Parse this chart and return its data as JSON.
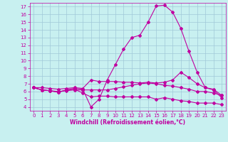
{
  "background_color": "#c8f0f0",
  "grid_color": "#a0c8d8",
  "line_color": "#c000a0",
  "xlabel": "Windchill (Refroidissement éolien,°C)",
  "ylim": [
    3.5,
    17.5
  ],
  "xlim": [
    -0.5,
    23.5
  ],
  "yticks": [
    4,
    5,
    6,
    7,
    8,
    9,
    10,
    11,
    12,
    13,
    14,
    15,
    16,
    17
  ],
  "xticks": [
    0,
    1,
    2,
    3,
    4,
    5,
    6,
    7,
    8,
    9,
    10,
    11,
    12,
    13,
    14,
    15,
    16,
    17,
    18,
    19,
    20,
    21,
    22,
    23
  ],
  "line1_x": [
    0,
    1,
    2,
    3,
    4,
    5,
    6,
    7,
    8,
    9,
    10,
    11,
    12,
    13,
    14,
    15,
    16,
    17,
    18,
    19,
    20,
    21,
    22,
    23
  ],
  "line1_y": [
    6.5,
    6.2,
    6.1,
    5.9,
    6.2,
    6.3,
    5.8,
    5.3,
    5.4,
    5.4,
    5.3,
    5.3,
    5.3,
    5.3,
    5.3,
    5.0,
    5.2,
    5.0,
    4.8,
    4.7,
    4.5,
    4.5,
    4.5,
    4.3
  ],
  "line2_x": [
    0,
    1,
    2,
    3,
    4,
    5,
    6,
    7,
    8,
    9,
    10,
    11,
    12,
    13,
    14,
    15,
    16,
    17,
    18,
    19,
    20,
    21,
    22,
    23
  ],
  "line2_y": [
    6.5,
    6.5,
    6.4,
    6.3,
    6.4,
    6.5,
    6.4,
    7.5,
    7.3,
    7.3,
    7.3,
    7.2,
    7.2,
    7.1,
    7.2,
    7.1,
    7.2,
    7.5,
    8.5,
    7.8,
    7.0,
    6.5,
    6.3,
    5.5
  ],
  "line3_x": [
    0,
    1,
    2,
    3,
    4,
    5,
    6,
    7,
    8,
    9,
    10,
    11,
    12,
    13,
    14,
    15,
    16,
    17,
    18,
    19,
    20,
    21,
    22,
    23
  ],
  "line3_y": [
    6.5,
    6.2,
    6.1,
    5.9,
    6.2,
    6.4,
    6.3,
    4.0,
    5.0,
    7.5,
    9.5,
    11.5,
    13.0,
    13.3,
    15.0,
    17.1,
    17.2,
    16.3,
    14.2,
    11.2,
    8.5,
    6.5,
    6.2,
    5.2
  ],
  "line4_x": [
    0,
    1,
    2,
    3,
    4,
    5,
    6,
    7,
    8,
    9,
    10,
    11,
    12,
    13,
    14,
    15,
    16,
    17,
    18,
    19,
    20,
    21,
    22,
    23
  ],
  "line4_y": [
    6.5,
    6.2,
    6.1,
    6.0,
    6.1,
    6.2,
    6.2,
    6.2,
    6.2,
    6.2,
    6.4,
    6.6,
    6.8,
    7.0,
    7.1,
    7.0,
    6.8,
    6.7,
    6.5,
    6.3,
    6.0,
    6.0,
    5.8,
    5.5
  ],
  "tick_fontsize": 5,
  "xlabel_fontsize": 5.5,
  "marker_size": 2.0,
  "line_width": 0.8
}
